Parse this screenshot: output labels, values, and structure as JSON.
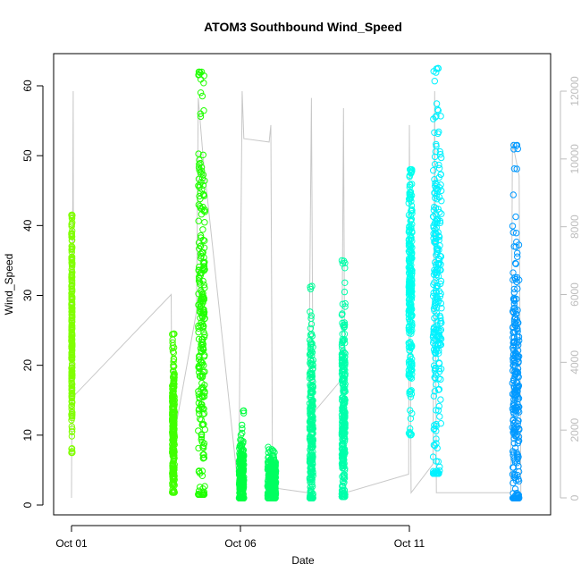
{
  "chart_data": {
    "type": "scatter",
    "title": "ATOM3 Southbound Wind_Speed",
    "xlabel": "Date",
    "ylabel": "Wind_Speed",
    "x_ticks": [
      {
        "label": "Oct 01",
        "day": 1
      },
      {
        "label": "Oct 06",
        "day": 6
      },
      {
        "label": "Oct 11",
        "day": 11
      }
    ],
    "xlim_days": [
      1,
      15
    ],
    "ylim": [
      0,
      60
    ],
    "y_ticks": [
      0,
      10,
      20,
      30,
      40,
      50,
      60
    ],
    "y2_ticks": [
      0,
      2000,
      4000,
      6000,
      8000,
      10000,
      12000
    ],
    "y2lim": [
      0,
      12000
    ],
    "grid": false,
    "point_series": [
      {
        "start": "Oct 01",
        "x_days": [
          1.0,
          1.02
        ],
        "y_min": 7.5,
        "y_max": 41.5,
        "y_center": 26,
        "color": "#80ff00"
      },
      {
        "start": "Oct 04",
        "x_days": [
          3.98,
          4.05
        ],
        "y_min": 1.8,
        "y_max": 24.5,
        "y_center": 10,
        "color": "#40ff00"
      },
      {
        "start": "Oct 04",
        "x_days": [
          4.75,
          4.95
        ],
        "y_min": 1.5,
        "y_max": 62,
        "y_center": 25,
        "color": "#20ff00"
      },
      {
        "start": "Oct 06",
        "x_days": [
          5.96,
          6.1
        ],
        "y_min": 1.0,
        "y_max": 13.5,
        "y_center": 3.5,
        "color": "#00ff40"
      },
      {
        "start": "Oct 07",
        "x_days": [
          6.8,
          7.05
        ],
        "y_min": 1.0,
        "y_max": 8.5,
        "y_center": 3.5,
        "color": "#00ff60"
      },
      {
        "start": "Oct 08",
        "x_days": [
          8.05,
          8.15
        ],
        "y_min": 1.0,
        "y_max": 31.5,
        "y_center": 10,
        "color": "#00ff99"
      },
      {
        "start": "Oct 09",
        "x_days": [
          9.0,
          9.1
        ],
        "y_min": 1.2,
        "y_max": 35,
        "y_center": 12,
        "color": "#00ffaa"
      },
      {
        "start": "Oct 11",
        "x_days": [
          10.98,
          11.08
        ],
        "y_min": 10,
        "y_max": 48,
        "y_center": 30,
        "color": "#00ffee"
      },
      {
        "start": "Oct 12",
        "x_days": [
          11.7,
          11.95
        ],
        "y_min": 4.5,
        "y_max": 62.5,
        "y_center": 30,
        "color": "#00f2ff"
      },
      {
        "start": "Oct 14",
        "x_days": [
          14.05,
          14.25
        ],
        "y_min": 1.0,
        "y_max": 51.5,
        "y_center": 18,
        "color": "#0099ff"
      }
    ],
    "line_series": {
      "name": "",
      "color": "#c8c8c8",
      "axis": "right",
      "points": [
        [
          1.0,
          0
        ],
        [
          1.05,
          12000
        ],
        [
          1.06,
          3000
        ],
        [
          3.95,
          6000
        ],
        [
          3.98,
          1500
        ],
        [
          4.7,
          5500
        ],
        [
          4.75,
          11800
        ],
        [
          4.9,
          10000
        ],
        [
          5.95,
          150
        ],
        [
          6.05,
          12000
        ],
        [
          6.1,
          10600
        ],
        [
          6.85,
          10500
        ],
        [
          6.9,
          11000
        ],
        [
          6.95,
          300
        ],
        [
          8.0,
          150
        ],
        [
          8.1,
          11800
        ],
        [
          8.15,
          2500
        ],
        [
          9.0,
          3500
        ],
        [
          9.05,
          11500
        ],
        [
          9.1,
          150
        ],
        [
          10.98,
          700
        ],
        [
          11.0,
          11000
        ],
        [
          11.05,
          150
        ],
        [
          11.7,
          1000
        ],
        [
          11.75,
          12000
        ],
        [
          11.8,
          150
        ],
        [
          14.0,
          150
        ],
        [
          14.05,
          10500
        ],
        [
          14.25,
          9500
        ],
        [
          14.3,
          150
        ]
      ]
    }
  }
}
